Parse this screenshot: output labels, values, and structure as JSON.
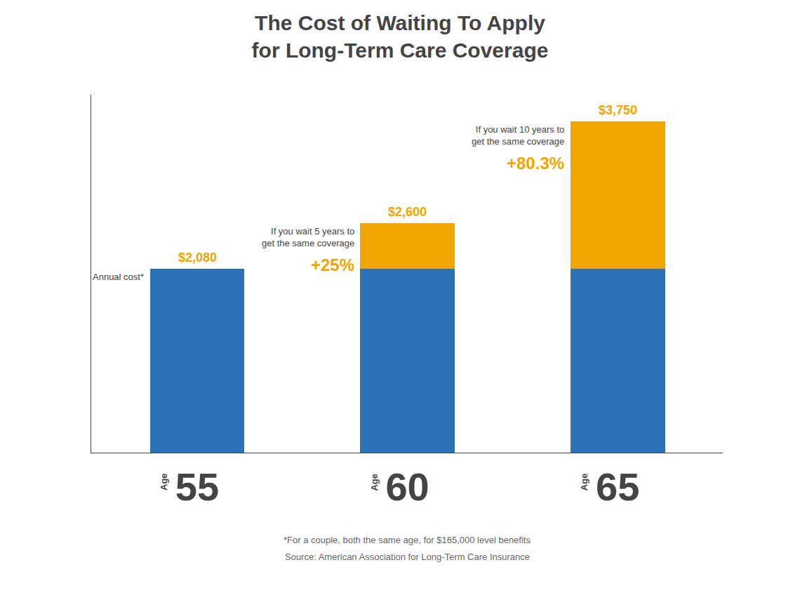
{
  "chart_data": {
    "type": "bar",
    "title": "The Cost of Waiting To Apply\nfor Long-Term Care Coverage",
    "xlabel": "Age",
    "categories": [
      "55",
      "60",
      "65"
    ],
    "stacked": true,
    "series": [
      {
        "color": "#2b72b8",
        "values": [
          2080,
          2080,
          2080
        ]
      },
      {
        "color": "#f0a500",
        "values": [
          0,
          520,
          1670
        ]
      }
    ],
    "totals": [
      2080,
      2600,
      3750
    ],
    "total_labels": [
      "$2,080",
      "$2,600",
      "$3,750"
    ],
    "annotations": [
      {
        "category": "55",
        "text": [
          "Annual cost*"
        ]
      },
      {
        "category": "60",
        "text": [
          "If you wait 5 years to",
          "get the same coverage"
        ],
        "change": {
          "value": 25,
          "label": "+25%"
        }
      },
      {
        "category": "65",
        "text": [
          "If you wait 10 years to",
          "get the same coverage"
        ],
        "change": {
          "value": 80.3,
          "label": "+80.3%"
        }
      }
    ],
    "footnotes": [
      "*For a couple, both the same age, for $165,000 level benefits",
      "Source: American Association for Long-Term Care Insurance"
    ],
    "ylim": [
      0,
      4050
    ],
    "tick_labels": "x",
    "grid": false
  }
}
